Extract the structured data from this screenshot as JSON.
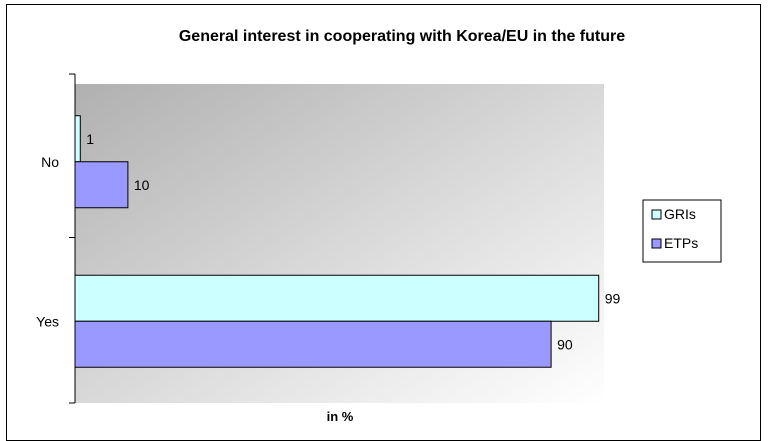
{
  "chart_data": {
    "type": "bar",
    "orientation": "horizontal",
    "title": "General interest in cooperating with Korea/EU in the future",
    "xlabel": "in %",
    "ylabel": "",
    "categories": [
      "No",
      "Yes"
    ],
    "series": [
      {
        "name": "GRIs",
        "values": [
          1,
          99
        ],
        "color": "#ccffff"
      },
      {
        "name": "ETPs",
        "values": [
          10,
          90
        ],
        "color": "#9999ff"
      }
    ],
    "xlim": [
      0,
      100
    ],
    "grid": false,
    "legend_position": "right",
    "plot_background": "gradient-gray"
  }
}
